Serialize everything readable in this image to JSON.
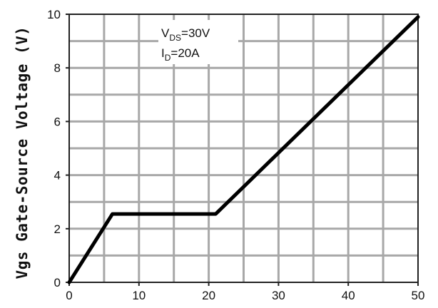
{
  "chart_data": {
    "type": "line",
    "title": "",
    "xlabel": "",
    "ylabel": "Vgs Gate-Source Voltage (V)",
    "xlim": [
      0,
      50
    ],
    "ylim": [
      0,
      10
    ],
    "xticks": [
      0,
      10,
      20,
      30,
      40,
      50
    ],
    "yticks": [
      0,
      2,
      4,
      6,
      8,
      10
    ],
    "grid": true,
    "annotations": {
      "line1": {
        "main": "V",
        "sub": "DS",
        "rest": "=30V"
      },
      "line2": {
        "main": "I",
        "sub": "D",
        "rest": "=20A"
      }
    },
    "series": [
      {
        "x": [
          0,
          6.2,
          21,
          50
        ],
        "y": [
          0,
          2.55,
          2.55,
          9.9
        ]
      }
    ]
  }
}
